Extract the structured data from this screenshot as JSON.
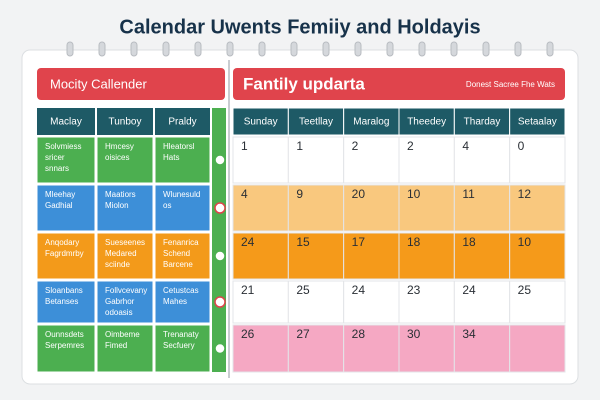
{
  "title": "Calendar Uwents Femiiy and Holdayis",
  "left_panel": {
    "header": "Mocity Callender",
    "columns": [
      "Maclay",
      "Tunboy",
      "Praldy"
    ],
    "rows": [
      [
        [
          "Solvmiess",
          "sricer",
          "snnars"
        ],
        [
          "Hmcesy",
          "oisices"
        ],
        [
          "Hleatorsl",
          "Hats"
        ]
      ],
      [
        [
          "Mleehay",
          "Gadhial"
        ],
        [
          "Maatiors",
          "Miolon"
        ],
        [
          "Wlunesuld",
          "os"
        ]
      ],
      [
        [
          "Anqodary",
          "Fagrdmrby"
        ],
        [
          "Sueseenes",
          "Medared",
          "sciinde"
        ],
        [
          "Fenanrica",
          "Schend",
          "Barcene"
        ]
      ],
      [
        [
          "Sloanbans",
          "Betanses"
        ],
        [
          "Follvcevany",
          "Gabrhor",
          "odoasis"
        ],
        [
          "Cetustcas",
          "Mahes"
        ]
      ],
      [
        [
          "Ounnsdets",
          "Serpemres"
        ],
        [
          "Oimbeme",
          "Fimed"
        ],
        [
          "Trenanaty",
          "Secfuery"
        ]
      ]
    ]
  },
  "right_panel": {
    "header": "Fantily updarta",
    "subheader": "Donest Sacree Fhe Wats",
    "columns": [
      "Sunday",
      "Teetllay",
      "Maralog",
      "Theedey",
      "Tharday",
      "Setaalay"
    ],
    "rows": [
      [
        1,
        1,
        2,
        2,
        4,
        0
      ],
      [
        4,
        9,
        20,
        10,
        11,
        12
      ],
      [
        24,
        15,
        17,
        18,
        18,
        10
      ],
      [
        21,
        25,
        24,
        23,
        24,
        25
      ],
      [
        26,
        27,
        28,
        30,
        34
      ]
    ]
  }
}
